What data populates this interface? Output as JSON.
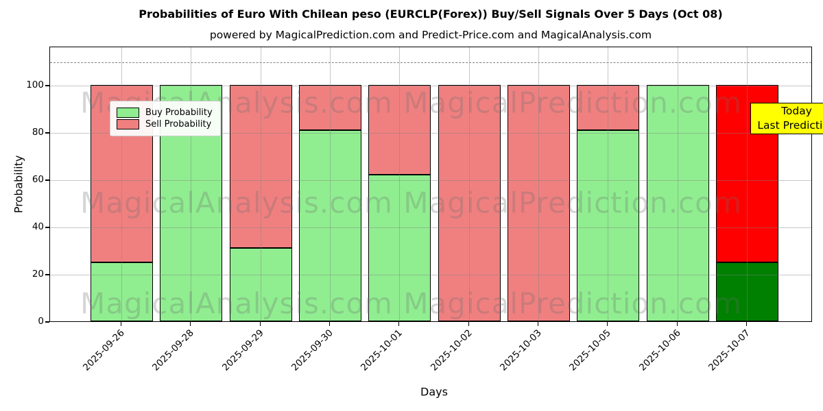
{
  "title": "Probabilities of Euro With Chilean peso (EURCLP(Forex)) Buy/Sell Signals Over 5 Days (Oct 08)",
  "subtitle": "powered by MagicalPrediction.com and Predict-Price.com and MagicalAnalysis.com",
  "axes": {
    "xlabel": "Days",
    "ylabel": "Probability"
  },
  "legend": {
    "items": [
      {
        "label": "Buy Probability",
        "color": "#90ee90"
      },
      {
        "label": "Sell Probability",
        "color": "#f08080"
      }
    ]
  },
  "annotation": {
    "line1": "Today",
    "line2": "Last Prediction",
    "bg_color": "#ffff00",
    "border_color": "#000000"
  },
  "watermarks": {
    "left": "MagicalAnalysis.com",
    "right": "MagicalPrediction.com"
  },
  "chart_data": {
    "type": "bar",
    "stacked": true,
    "title": "Probabilities of Euro With Chilean peso (EURCLP(Forex)) Buy/Sell Signals Over 5 Days (Oct 08)",
    "xlabel": "Days",
    "ylabel": "Probability",
    "categories": [
      "2025-09-26",
      "2025-09-28",
      "2025-09-29",
      "2025-09-30",
      "2025-10-01",
      "2025-10-02",
      "2025-10-03",
      "2025-10-05",
      "2025-10-06",
      "2025-10-07"
    ],
    "series": [
      {
        "name": "Buy Probability",
        "color": "#90ee90",
        "values": [
          25,
          100,
          31,
          81,
          62,
          0,
          0,
          81,
          100,
          25
        ]
      },
      {
        "name": "Sell Probability",
        "color": "#f08080",
        "values": [
          75,
          0,
          69,
          19,
          38,
          100,
          100,
          19,
          0,
          75
        ]
      }
    ],
    "today_index": 9,
    "today_colors": {
      "buy": "#008000",
      "sell": "#ff0000"
    },
    "bar_edge_color": "#000000",
    "ylim": [
      0,
      116.5
    ],
    "yticks": [
      0,
      20,
      40,
      60,
      80,
      100
    ],
    "dashed_line_y": 110,
    "grid": true,
    "legend_position": "upper left"
  }
}
